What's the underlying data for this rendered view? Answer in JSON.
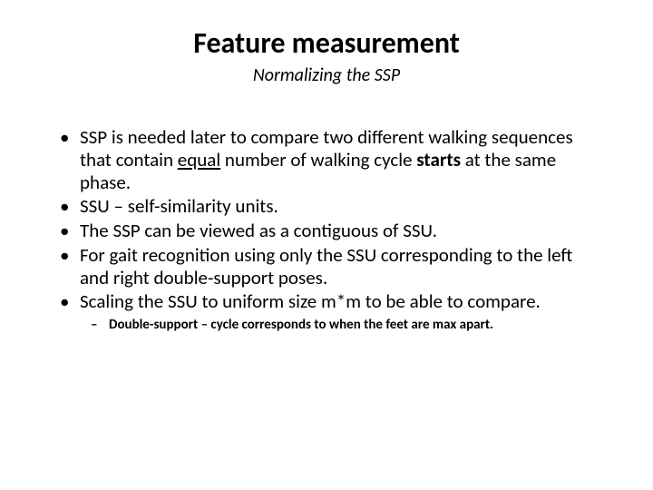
{
  "colors": {
    "background": "#ffffff",
    "text": "#000000"
  },
  "typography": {
    "title_fontsize": 32,
    "title_weight": 700,
    "subtitle_fontsize": 20,
    "subtitle_style": "italic",
    "bullet_fontsize": 21,
    "subbullet_fontsize": 15,
    "subbullet_weight": 700
  },
  "title": "Feature measurement",
  "subtitle": "Normalizing the SSP",
  "bullets": {
    "b0": {
      "pre": "SSP is needed later to compare two different walking sequences that contain ",
      "equal": "equal",
      "mid": " number of walking cycle ",
      "starts": "starts",
      "post": " at the same phase."
    },
    "b1": "SSU – self-similarity units.",
    "b2": "The SSP can be viewed as a contiguous of SSU.",
    "b3": "For gait recognition using only the SSU corresponding to the left and right double-support poses.",
    "b4": "Scaling the SSU to uniform size m*m to be able to compare."
  },
  "subbullet": "Double-support – cycle corresponds to when the feet are max apart."
}
